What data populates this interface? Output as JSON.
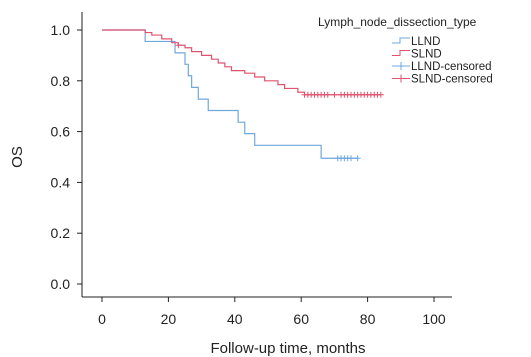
{
  "chart_data": {
    "type": "line",
    "step": true,
    "xlabel": "Follow-up time, months",
    "ylabel": "OS",
    "xlim": [
      0,
      100
    ],
    "ylim": [
      0,
      1.05
    ],
    "xticks": [
      0,
      20,
      40,
      60,
      80,
      100
    ],
    "yticks": [
      0.0,
      0.2,
      0.4,
      0.6,
      0.8,
      1.0
    ],
    "xtick_labels": [
      "0",
      "20",
      "40",
      "60",
      "80",
      "100"
    ],
    "ytick_labels": [
      "0.0",
      "0.2",
      "0.4",
      "0.6",
      "0.8",
      "1.0"
    ],
    "grid": false,
    "legend": {
      "title": "Lymph_node_dissection_type",
      "position": "top-right",
      "entries": [
        "LLND",
        "SLND",
        "LLND-censored",
        "SLND-censored"
      ]
    },
    "series": [
      {
        "name": "LLND",
        "color": "#6fa8dc",
        "points": [
          [
            0,
            1.0
          ],
          [
            13,
            1.0
          ],
          [
            13,
            0.955
          ],
          [
            22,
            0.955
          ],
          [
            22,
            0.91
          ],
          [
            25,
            0.91
          ],
          [
            25,
            0.865
          ],
          [
            26,
            0.865
          ],
          [
            26,
            0.82
          ],
          [
            27,
            0.82
          ],
          [
            27,
            0.774
          ],
          [
            29,
            0.774
          ],
          [
            29,
            0.728
          ],
          [
            32,
            0.728
          ],
          [
            32,
            0.683
          ],
          [
            41,
            0.683
          ],
          [
            41,
            0.637
          ],
          [
            43,
            0.637
          ],
          [
            43,
            0.592
          ],
          [
            46,
            0.592
          ],
          [
            46,
            0.546
          ],
          [
            66,
            0.546
          ],
          [
            66,
            0.495
          ],
          [
            77,
            0.495
          ]
        ],
        "censored": [
          [
            71,
            0.495
          ],
          [
            72,
            0.495
          ],
          [
            73,
            0.495
          ],
          [
            74,
            0.495
          ],
          [
            75,
            0.495
          ],
          [
            77,
            0.495
          ]
        ]
      },
      {
        "name": "SLND",
        "color": "#e0536f",
        "points": [
          [
            0,
            1.0
          ],
          [
            13,
            1.0
          ],
          [
            13,
            0.99
          ],
          [
            15,
            0.99
          ],
          [
            15,
            0.98
          ],
          [
            18,
            0.98
          ],
          [
            18,
            0.965
          ],
          [
            21,
            0.965
          ],
          [
            21,
            0.95
          ],
          [
            23,
            0.95
          ],
          [
            23,
            0.94
          ],
          [
            25,
            0.94
          ],
          [
            25,
            0.93
          ],
          [
            27,
            0.93
          ],
          [
            27,
            0.915
          ],
          [
            30,
            0.915
          ],
          [
            30,
            0.9
          ],
          [
            33,
            0.9
          ],
          [
            33,
            0.885
          ],
          [
            35,
            0.885
          ],
          [
            35,
            0.87
          ],
          [
            37,
            0.87
          ],
          [
            37,
            0.855
          ],
          [
            39,
            0.855
          ],
          [
            39,
            0.84
          ],
          [
            43,
            0.84
          ],
          [
            43,
            0.83
          ],
          [
            46,
            0.83
          ],
          [
            46,
            0.815
          ],
          [
            49,
            0.815
          ],
          [
            49,
            0.8
          ],
          [
            53,
            0.8
          ],
          [
            53,
            0.785
          ],
          [
            55,
            0.785
          ],
          [
            55,
            0.77
          ],
          [
            59,
            0.77
          ],
          [
            59,
            0.755
          ],
          [
            61,
            0.755
          ],
          [
            61,
            0.745
          ],
          [
            84,
            0.745
          ]
        ],
        "censored": [
          [
            23,
            0.94
          ],
          [
            61,
            0.745
          ],
          [
            62,
            0.745
          ],
          [
            63,
            0.745
          ],
          [
            64,
            0.745
          ],
          [
            65,
            0.745
          ],
          [
            66,
            0.745
          ],
          [
            67,
            0.745
          ],
          [
            68,
            0.745
          ],
          [
            70,
            0.745
          ],
          [
            72,
            0.745
          ],
          [
            73,
            0.745
          ],
          [
            74,
            0.745
          ],
          [
            75,
            0.745
          ],
          [
            76,
            0.745
          ],
          [
            77,
            0.745
          ],
          [
            78,
            0.745
          ],
          [
            79,
            0.745
          ],
          [
            80,
            0.745
          ],
          [
            81,
            0.745
          ],
          [
            82,
            0.745
          ],
          [
            83,
            0.745
          ],
          [
            84,
            0.745
          ]
        ]
      }
    ]
  }
}
